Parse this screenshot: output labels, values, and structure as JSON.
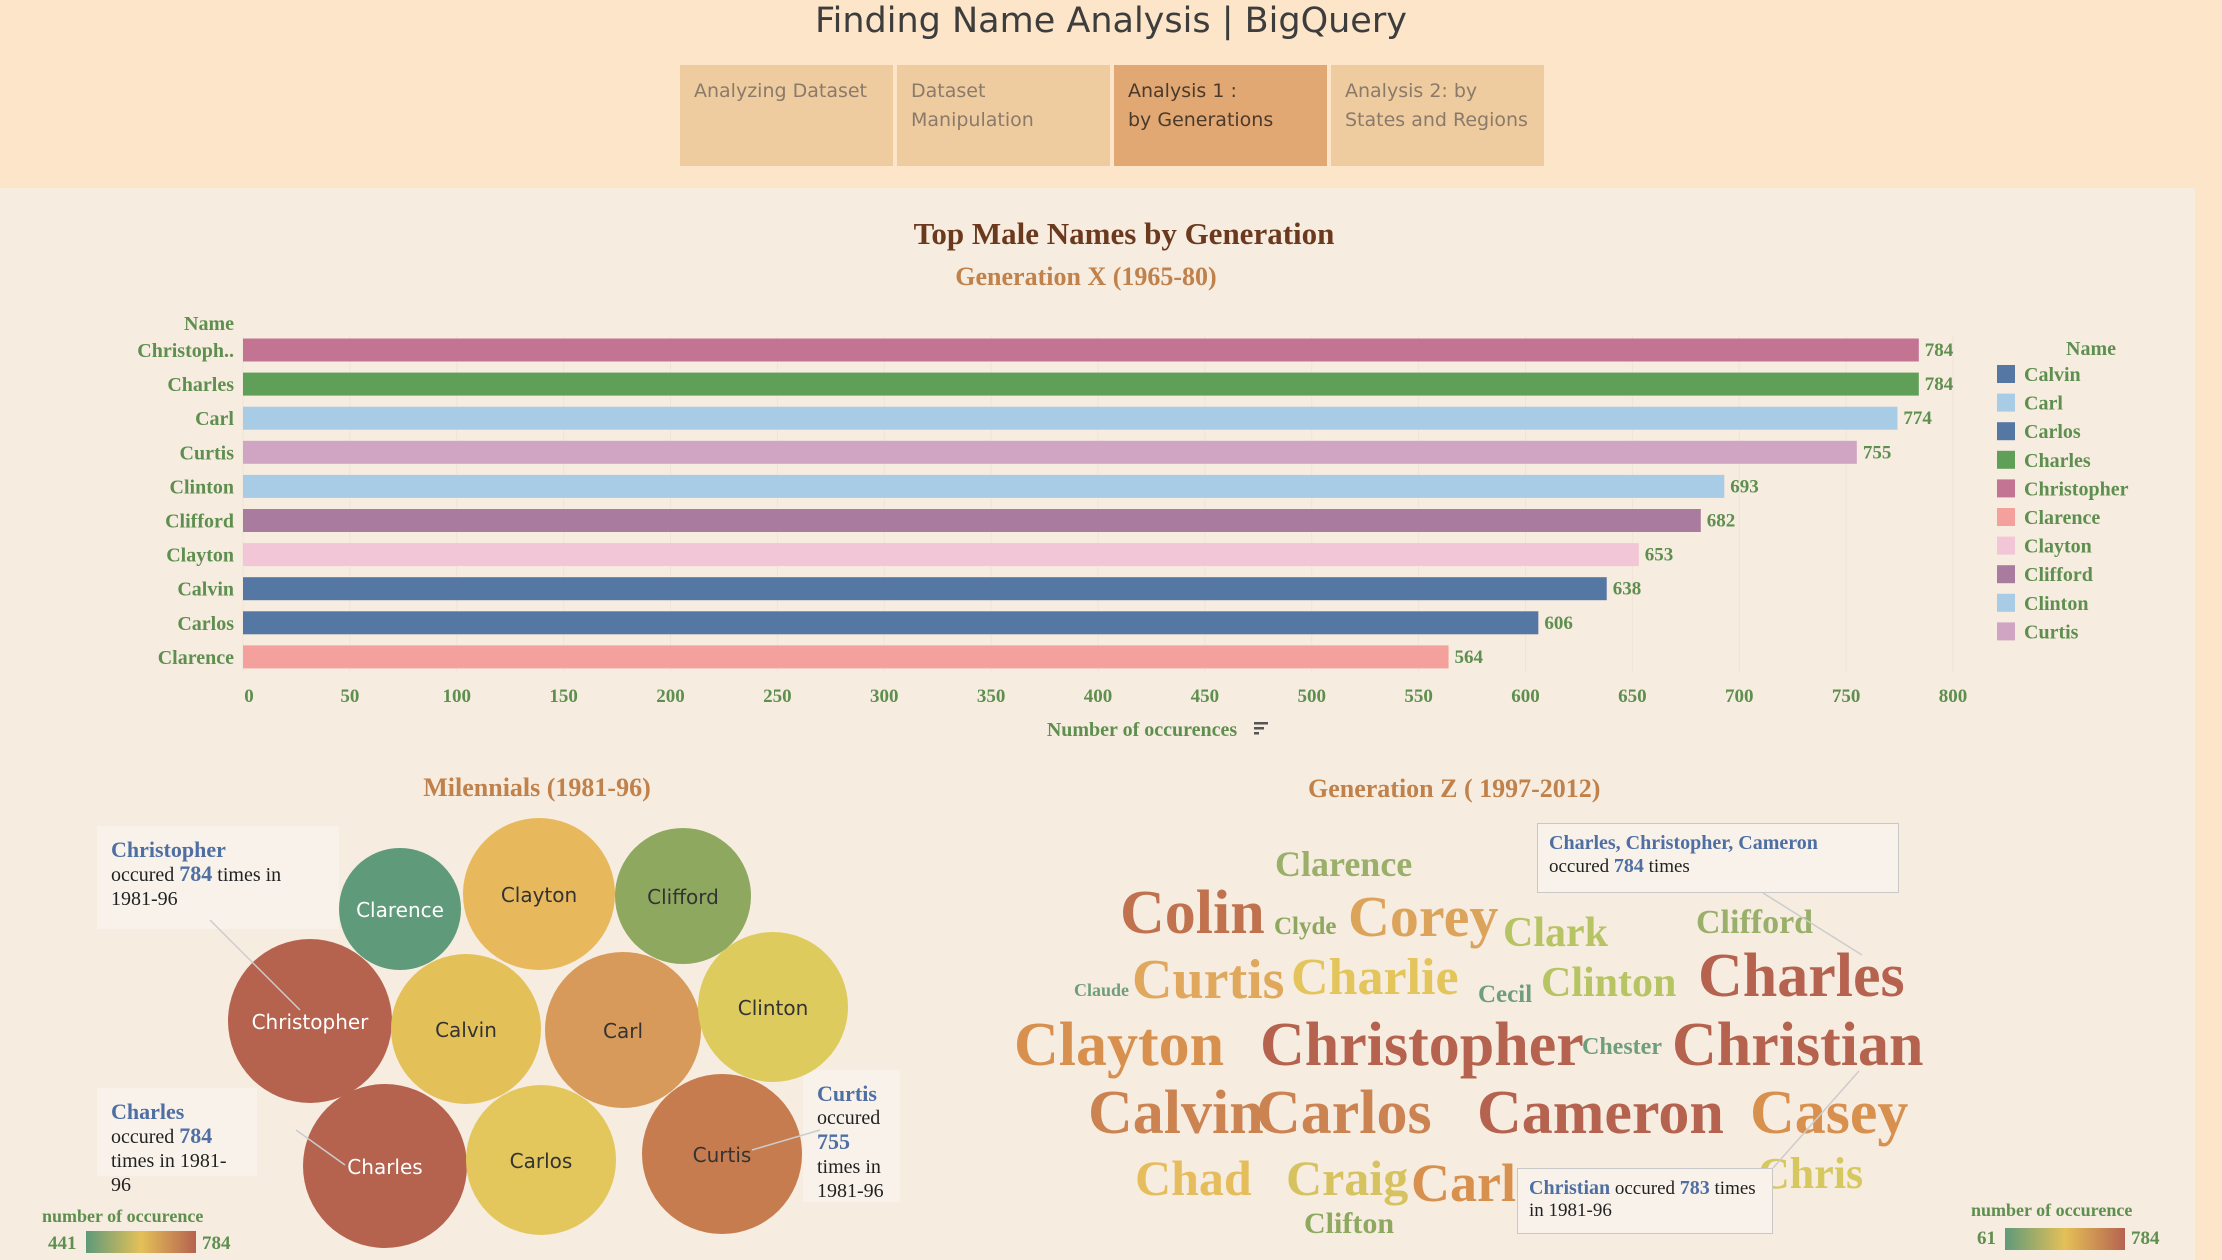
{
  "header": {
    "title": "Finding Name Analysis | BigQuery",
    "tabs": [
      {
        "label": "Analyzing Dataset",
        "active": false
      },
      {
        "label": "Dataset\nManipulation",
        "active": false
      },
      {
        "label": "Analysis 1 :\nby Generations",
        "active": true
      },
      {
        "label": "Analysis 2: by\nStates and Regions",
        "active": false
      }
    ]
  },
  "dashboard": {
    "title": "Top Male Names by Generation"
  },
  "chart_data": [
    {
      "type": "bar",
      "orientation": "horizontal",
      "title": "Generation X (1965-80)",
      "ylabel": "Name",
      "xlabel": "Number of occurences",
      "categories": [
        "Christoph..",
        "Charles",
        "Carl",
        "Curtis",
        "Clinton",
        "Clifford",
        "Clayton",
        "Calvin",
        "Carlos",
        "Clarence"
      ],
      "values": [
        784,
        784,
        774,
        755,
        693,
        682,
        653,
        638,
        606,
        564
      ],
      "colors": [
        "#c47493",
        "#609f58",
        "#a8cbe6",
        "#d0a5c3",
        "#a8cbe6",
        "#a97b9f",
        "#f2c6d6",
        "#5577a4",
        "#5577a4",
        "#f4a09c"
      ],
      "xlim": [
        0,
        800
      ],
      "xticks": [
        0,
        50,
        100,
        150,
        200,
        250,
        300,
        350,
        400,
        450,
        500,
        550,
        600,
        650,
        700,
        750,
        800
      ],
      "legend": {
        "title": "Name",
        "position": "right",
        "items": [
          {
            "name": "Calvin",
            "color": "#5577a4"
          },
          {
            "name": "Carl",
            "color": "#a8cbe6"
          },
          {
            "name": "Carlos",
            "color": "#5577a4"
          },
          {
            "name": "Charles",
            "color": "#609f58"
          },
          {
            "name": "Christopher",
            "color": "#c47493"
          },
          {
            "name": "Clarence",
            "color": "#f4a09c"
          },
          {
            "name": "Clayton",
            "color": "#f2c6d6"
          },
          {
            "name": "Clifford",
            "color": "#a97b9f"
          },
          {
            "name": "Clinton",
            "color": "#a8cbe6"
          },
          {
            "name": "Curtis",
            "color": "#d0a5c3"
          }
        ]
      }
    },
    {
      "type": "bubble",
      "title": "Milennials (1981-96)",
      "bubbles": [
        {
          "name": "Christopher",
          "value": 784,
          "color": "#b5634f"
        },
        {
          "name": "Charles",
          "value": 784,
          "color": "#b5634f"
        },
        {
          "name": "Carl",
          "value": 774,
          "color": "#d89a5a"
        },
        {
          "name": "Curtis",
          "value": 755,
          "color": "#c67c4e"
        },
        {
          "name": "Calvin",
          "value": 700,
          "color": "#e4c058"
        },
        {
          "name": "Clinton",
          "value": 680,
          "color": "#decb5e"
        },
        {
          "name": "Carlos",
          "value": 680,
          "color": "#e3c75c"
        },
        {
          "name": "Clayton",
          "value": 660,
          "color": "#e8b85c"
        },
        {
          "name": "Clifford",
          "value": 560,
          "color": "#8ea85f"
        },
        {
          "name": "Clarence",
          "value": 441,
          "color": "#5f9a7a"
        }
      ],
      "color_legend": {
        "title": "number of occurence",
        "min": 441,
        "max": 784
      },
      "tooltips": [
        {
          "name": "Christopher",
          "pre": "occured",
          "value": 784,
          "post": "times in 1981-96"
        },
        {
          "name": "Charles",
          "pre": "occured",
          "value": 784,
          "post": "times in 1981-96"
        },
        {
          "name": "Curtis",
          "pre": "occured",
          "value": 755,
          "post": "times in 1981-96"
        }
      ]
    },
    {
      "type": "wordcloud",
      "title": "Generation Z ( 1997-2012)",
      "words": [
        {
          "text": "Clarence",
          "color": "#9ab06a"
        },
        {
          "text": "Colin",
          "color": "#c0714e"
        },
        {
          "text": "Clyde",
          "color": "#8ea85f"
        },
        {
          "text": "Corey",
          "color": "#dca45a"
        },
        {
          "text": "Clark",
          "color": "#b7c463"
        },
        {
          "text": "Clifford",
          "color": "#9ab06a"
        },
        {
          "text": "Claude",
          "color": "#6f9f7a"
        },
        {
          "text": "Curtis",
          "color": "#e0a85c"
        },
        {
          "text": "Charlie",
          "color": "#e3c55c"
        },
        {
          "text": "Cecil",
          "color": "#6f9f7a"
        },
        {
          "text": "Clinton",
          "color": "#b7c463"
        },
        {
          "text": "Charles",
          "color": "#b5634f"
        },
        {
          "text": "Clayton",
          "color": "#d8904f"
        },
        {
          "text": "Christopher",
          "color": "#b5634f"
        },
        {
          "text": "Chester",
          "color": "#6f9f7a"
        },
        {
          "text": "Christian",
          "color": "#b5634f"
        },
        {
          "text": "Calvin",
          "color": "#cc8352"
        },
        {
          "text": "Carlos",
          "color": "#cc8352"
        },
        {
          "text": "Cameron",
          "color": "#b5634f"
        },
        {
          "text": "Casey",
          "color": "#d8904f"
        },
        {
          "text": "Chad",
          "color": "#e6bd5c"
        },
        {
          "text": "Craig",
          "color": "#d6c25f"
        },
        {
          "text": "Carl",
          "color": "#d8904f"
        },
        {
          "text": "Chris",
          "color": "#d6c85f"
        },
        {
          "text": "Clifton",
          "color": "#8ea85f"
        }
      ],
      "color_legend": {
        "title": "number of occurence",
        "min": 61,
        "max": 784
      },
      "tooltips": [
        {
          "name": "Charles, Christopher, Cameron",
          "pre": "occured",
          "value": 784,
          "post": "times"
        },
        {
          "name": "Christian",
          "pre": "occured",
          "value": 783,
          "post": "times in 1981-96"
        }
      ]
    }
  ]
}
